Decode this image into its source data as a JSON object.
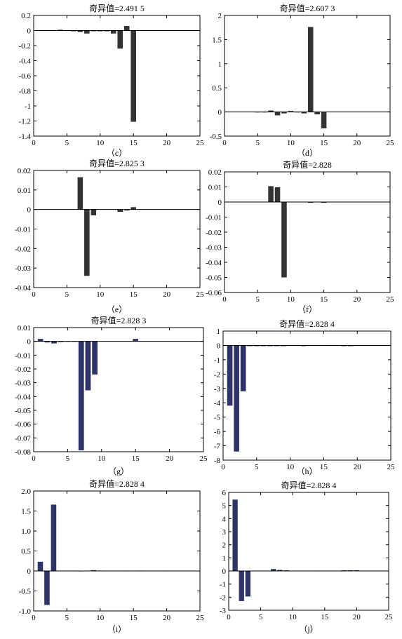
{
  "chart_data": [
    {
      "panel": "c",
      "type": "bar",
      "title": "奇异值=2.491 5",
      "caption": "（c）",
      "xlim": [
        0,
        25
      ],
      "ylim": [
        -1.4,
        0.2
      ],
      "xticks": [
        "0",
        "5",
        "10",
        "15",
        "20",
        "25"
      ],
      "xtick_values": [
        0,
        5,
        10,
        15,
        20,
        25
      ],
      "yticks": [
        "0.2",
        "0",
        "-0.2",
        "-0.4",
        "-0.6",
        "-0.8",
        "-1",
        "-1.2",
        "-1.4"
      ],
      "ytick_values": [
        0.2,
        0,
        -0.2,
        -0.4,
        -0.6,
        -0.8,
        -1,
        -1.2,
        -1.4
      ],
      "bar_color": "#333333",
      "x": [
        1,
        2,
        3,
        4,
        5,
        6,
        7,
        8,
        9,
        10,
        11,
        12,
        13,
        14,
        15,
        16,
        17,
        18,
        19,
        20,
        21
      ],
      "values": [
        0,
        0,
        0,
        0.01,
        0,
        -0.01,
        -0.02,
        -0.04,
        -0.01,
        -0.01,
        -0.01,
        -0.04,
        -0.24,
        0.06,
        -1.21,
        0,
        0,
        0,
        0,
        0,
        0
      ]
    },
    {
      "panel": "d",
      "type": "bar",
      "title": "奇异值=2.607 3",
      "caption": "（d）",
      "xlim": [
        0,
        25
      ],
      "ylim": [
        -0.5,
        2
      ],
      "xticks": [
        "0",
        "5",
        "10",
        "15",
        "20",
        "25"
      ],
      "xtick_values": [
        0,
        5,
        10,
        15,
        20,
        25
      ],
      "yticks": [
        "2",
        "1.5",
        "1",
        "0.5",
        "0",
        "-0.5"
      ],
      "ytick_values": [
        2,
        1.5,
        1,
        0.5,
        0,
        -0.5
      ],
      "bar_color": "#333333",
      "x": [
        1,
        2,
        3,
        4,
        5,
        6,
        7,
        8,
        9,
        10,
        11,
        12,
        13,
        14,
        15,
        16,
        17,
        18,
        19,
        20,
        21
      ],
      "values": [
        0,
        0,
        0,
        0,
        -0.01,
        -0.01,
        0.03,
        -0.07,
        -0.03,
        0.02,
        -0.01,
        -0.03,
        1.76,
        -0.05,
        -0.34,
        0,
        0,
        0,
        0,
        0,
        0
      ]
    },
    {
      "panel": "e",
      "type": "bar",
      "title": "奇异值=2.825 3",
      "caption": "（e）",
      "xlim": [
        0,
        25
      ],
      "ylim": [
        -0.04,
        0.02
      ],
      "xticks": [
        "0",
        "5",
        "10",
        "15",
        "20",
        "25"
      ],
      "xtick_values": [
        0,
        5,
        10,
        15,
        20,
        25
      ],
      "yticks": [
        "0.02",
        "0.01",
        "0",
        "-0.01",
        "-0.02",
        "-0.03",
        "-0.04"
      ],
      "ytick_values": [
        0.02,
        0.01,
        0,
        -0.01,
        -0.02,
        -0.03,
        -0.04
      ],
      "bar_color": "#333333",
      "x": [
        1,
        2,
        3,
        4,
        5,
        6,
        7,
        8,
        9,
        10,
        11,
        12,
        13,
        14,
        15,
        16,
        17,
        18,
        19,
        20,
        21
      ],
      "values": [
        0,
        0,
        0,
        0,
        0,
        0,
        0.0165,
        -0.034,
        -0.003,
        0,
        0,
        0,
        -0.0012,
        -0.0005,
        0.0012,
        0,
        0,
        0,
        0,
        0,
        0
      ]
    },
    {
      "panel": "f",
      "type": "bar",
      "title": "奇异值=2.828",
      "caption": "（f）",
      "xlim": [
        0,
        25
      ],
      "ylim": [
        -0.06,
        0.02
      ],
      "xticks": [
        "0",
        "5",
        "10",
        "15",
        "20",
        "25"
      ],
      "xtick_values": [
        0,
        5,
        10,
        15,
        20,
        25
      ],
      "yticks": [
        "0.02",
        "0.01",
        "0",
        "-0.01",
        "-0.02",
        "-0.03",
        "-0.04",
        "-0.05",
        "-0.06"
      ],
      "ytick_values": [
        0.02,
        0.01,
        0,
        -0.01,
        -0.02,
        -0.03,
        -0.04,
        -0.05,
        -0.06
      ],
      "bar_color": "#333333",
      "x": [
        1,
        2,
        3,
        4,
        5,
        6,
        7,
        8,
        9,
        10,
        11,
        12,
        13,
        14,
        15,
        16,
        17,
        18,
        19,
        20,
        21
      ],
      "values": [
        0,
        0,
        0,
        0,
        0,
        0,
        0.0105,
        0.0098,
        -0.05,
        0,
        0,
        0,
        -0.0005,
        0,
        -0.0005,
        0,
        0,
        0,
        0,
        0,
        0
      ]
    },
    {
      "panel": "g",
      "type": "bar",
      "title": "奇异值=2.828 3",
      "caption": "（g）",
      "xlim": [
        0,
        25
      ],
      "ylim": [
        -0.08,
        0.01
      ],
      "xticks": [
        "0",
        "5",
        "10",
        "15",
        "20",
        "25"
      ],
      "xtick_values": [
        0,
        5,
        10,
        15,
        20,
        25
      ],
      "yticks": [
        "0.01",
        "0",
        "-0.01",
        "-0.02",
        "-0.03",
        "-0.04",
        "-0.05",
        "-0.06",
        "-0.07",
        "-0.08"
      ],
      "ytick_values": [
        0.01,
        0,
        -0.01,
        -0.02,
        -0.03,
        -0.04,
        -0.05,
        -0.06,
        -0.07,
        -0.08
      ],
      "bar_color": "#2e3468",
      "x": [
        1,
        2,
        3,
        4,
        5,
        6,
        7,
        8,
        9,
        10,
        11,
        12,
        13,
        14,
        15,
        16,
        17,
        18,
        19,
        20,
        21
      ],
      "values": [
        0.0018,
        -0.0008,
        -0.0015,
        -0.0005,
        -0.0003,
        -0.0003,
        -0.079,
        -0.0355,
        -0.024,
        0,
        0,
        0,
        0,
        0,
        0.0018,
        0,
        0,
        0,
        0,
        0,
        0
      ]
    },
    {
      "panel": "h",
      "type": "bar",
      "title": "奇异值=2.828 4",
      "caption": "（h）",
      "xlim": [
        0,
        25
      ],
      "ylim": [
        -8,
        1
      ],
      "xticks": [
        "0",
        "5",
        "10",
        "15",
        "20",
        "25"
      ],
      "xtick_values": [
        0,
        5,
        10,
        15,
        20,
        25
      ],
      "yticks": [
        "1",
        "0",
        "-1",
        "-2",
        "-3",
        "-4",
        "-5",
        "-6",
        "-7",
        "-8"
      ],
      "ytick_values": [
        1,
        0,
        -1,
        -2,
        -3,
        -4,
        -5,
        -6,
        -7,
        -8
      ],
      "bar_color": "#2e3468",
      "x": [
        1,
        2,
        3,
        4,
        5,
        6,
        7,
        8,
        9,
        10,
        11,
        12,
        13,
        14,
        15,
        16,
        17,
        18,
        19,
        20,
        21
      ],
      "values": [
        -4.2,
        -7.4,
        -3.2,
        -0.05,
        -0.05,
        -0.05,
        -0.05,
        -0.05,
        -0.05,
        0,
        0,
        -0.05,
        0,
        0,
        -0.03,
        0,
        0,
        -0.05,
        -0.05,
        0,
        0
      ]
    },
    {
      "panel": "i",
      "type": "bar",
      "title": "奇异值=2.828 4",
      "caption": "（i）",
      "xlim": [
        0,
        25
      ],
      "ylim": [
        -1.0,
        2.0
      ],
      "xticks": [
        "0",
        "5",
        "10",
        "15",
        "20",
        "25"
      ],
      "xtick_values": [
        0,
        5,
        10,
        15,
        20,
        25
      ],
      "yticks": [
        "2.0",
        "1.5",
        "1.0",
        "0.5",
        "0",
        "-0.5",
        "-1.0"
      ],
      "ytick_values": [
        2.0,
        1.5,
        1.0,
        0.5,
        0,
        -0.5,
        -1.0
      ],
      "bar_color": "#2e3468",
      "x": [
        1,
        2,
        3,
        4,
        5,
        6,
        7,
        8,
        9,
        10,
        11,
        12,
        13,
        14,
        15,
        16,
        17,
        18,
        19,
        20,
        21
      ],
      "values": [
        0.23,
        -0.85,
        1.66,
        0,
        0,
        0,
        -0.01,
        0,
        0.02,
        0.01,
        0,
        0,
        0,
        0.01,
        0,
        0.01,
        0,
        0,
        0,
        0.01,
        0
      ]
    },
    {
      "panel": "j",
      "type": "bar",
      "title": "奇异值=2.828 4",
      "caption": "（j）",
      "xlim": [
        0,
        25
      ],
      "ylim": [
        -3,
        6
      ],
      "xticks": [
        "0",
        "5",
        "10",
        "15",
        "20",
        "25"
      ],
      "xtick_values": [
        0,
        5,
        10,
        15,
        20,
        25
      ],
      "yticks": [
        "6",
        "5",
        "4",
        "3",
        "2",
        "1",
        "0",
        "-1",
        "-2",
        "-3"
      ],
      "ytick_values": [
        6,
        5,
        4,
        3,
        2,
        1,
        0,
        -1,
        -2,
        -3
      ],
      "bar_color": "#2e3468",
      "x": [
        1,
        2,
        3,
        4,
        5,
        6,
        7,
        8,
        9,
        10,
        11,
        12,
        13,
        14,
        15,
        16,
        17,
        18,
        19,
        20,
        21
      ],
      "values": [
        5.45,
        -2.3,
        -1.95,
        0,
        0,
        0,
        0.15,
        0.08,
        0.05,
        0,
        0,
        0,
        0,
        0.03,
        0,
        0,
        0,
        0.05,
        0.05,
        0.05,
        0
      ]
    }
  ]
}
